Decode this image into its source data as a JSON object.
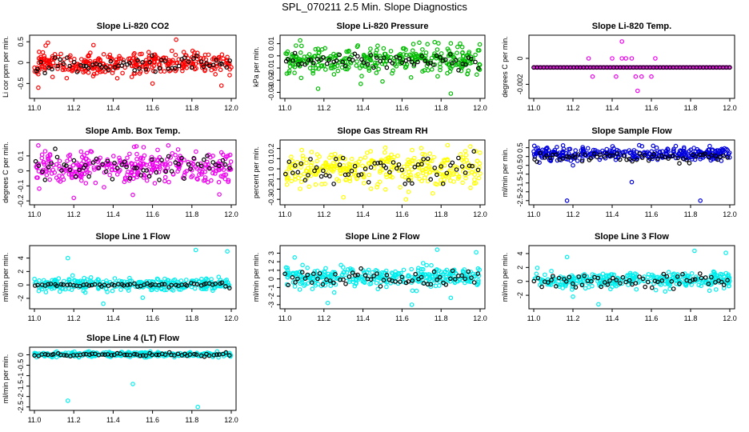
{
  "figure": {
    "title": "SPL_070211  2.5 Min. Slope Diagnostics"
  },
  "chart_data": [
    {
      "type": "scatter",
      "title": "Slope Li-820 CO2",
      "ylabel": "Li cor ppm per min.",
      "xlim": [
        11.0,
        12.0
      ],
      "ylim": [
        -0.8,
        0.6
      ],
      "xticks": [
        11.0,
        11.2,
        11.4,
        11.6,
        11.8,
        12.0
      ],
      "yticks": [
        -0.5,
        0.0,
        0.5
      ],
      "color": "#ff0000",
      "center": -0.02,
      "spread": 0.14,
      "lowCenter": -0.05,
      "lowSpread": 0.1,
      "seed": 11,
      "outliers": [
        [
          11.72,
          0.55
        ],
        [
          11.02,
          -0.6
        ],
        [
          11.95,
          -0.55
        ],
        [
          11.6,
          -0.5
        ],
        [
          11.3,
          0.42
        ]
      ]
    },
    {
      "type": "scatter",
      "title": "Slope Li-820 Pressure",
      "ylabel": "kPa per min.",
      "xlim": [
        11.0,
        12.0
      ],
      "ylim": [
        -0.033,
        0.015
      ],
      "xticks": [
        11.0,
        11.2,
        11.4,
        11.6,
        11.8,
        12.0
      ],
      "yticks": [
        -0.03,
        -0.02,
        -0.01,
        0.0,
        0.01
      ],
      "color": "#00bb00",
      "center": -0.003,
      "spread": 0.0055,
      "lowCenter": -0.003,
      "lowSpread": 0.003,
      "seed": 23,
      "outliers": [
        [
          11.85,
          -0.031
        ],
        [
          11.17,
          -0.027
        ],
        [
          11.5,
          -0.021
        ],
        [
          11.02,
          -0.014
        ]
      ]
    },
    {
      "type": "scatter",
      "title": "Slope Li-820 Temp.",
      "ylabel": "degrees C per min.",
      "xlim": [
        11.0,
        12.0
      ],
      "ylim": [
        -0.0029,
        0.0016
      ],
      "xticks": [
        11.0,
        11.2,
        11.4,
        11.6,
        11.8,
        12.0
      ],
      "yticks": [
        -0.002,
        0.0
      ],
      "color": "#ee00ee",
      "mode": "flat",
      "center": -0.0007,
      "seed": 37,
      "outliers": [
        [
          11.28,
          0.0
        ],
        [
          11.4,
          0.0
        ],
        [
          11.45,
          0.0
        ],
        [
          11.47,
          0.0
        ],
        [
          11.5,
          0.0
        ],
        [
          11.62,
          0.0
        ],
        [
          11.3,
          -0.0014
        ],
        [
          11.42,
          -0.0014
        ],
        [
          11.52,
          -0.0014
        ],
        [
          11.55,
          -0.0014
        ],
        [
          11.6,
          -0.0014
        ],
        [
          11.53,
          -0.0025
        ],
        [
          11.45,
          0.0013
        ]
      ]
    },
    {
      "type": "scatter",
      "title": "Slope Amb. Box Temp.",
      "ylabel": "degrees C per min.",
      "xlim": [
        11.0,
        12.0
      ],
      "ylim": [
        -0.21,
        0.19
      ],
      "xticks": [
        11.0,
        11.2,
        11.4,
        11.6,
        11.8,
        12.0
      ],
      "yticks": [
        -0.2,
        -0.1,
        0.0,
        0.1
      ],
      "color": "#ee00ee",
      "center": 0.02,
      "spread": 0.055,
      "lowCenter": 0.02,
      "lowSpread": 0.045,
      "seed": 41,
      "outliers": [
        [
          11.2,
          -0.18
        ],
        [
          11.68,
          0.17
        ],
        [
          11.5,
          -0.16
        ],
        [
          11.02,
          0.17
        ]
      ]
    },
    {
      "type": "scatter",
      "title": "Slope Gas Stream RH",
      "ylabel": "percent per min.",
      "xlim": [
        11.0,
        12.0
      ],
      "ylim": [
        -0.33,
        0.26
      ],
      "xticks": [
        11.0,
        11.2,
        11.4,
        11.6,
        11.8,
        12.0
      ],
      "yticks": [
        -0.3,
        -0.2,
        -0.1,
        0.0,
        0.1,
        0.2
      ],
      "color": "#ffff00",
      "center": 0.0,
      "spread": 0.085,
      "lowCenter": 0.0,
      "lowSpread": 0.08,
      "seed": 53,
      "outliers": [
        [
          11.62,
          -0.3
        ],
        [
          11.95,
          0.22
        ],
        [
          11.3,
          -0.28
        ]
      ]
    },
    {
      "type": "scatter",
      "title": "Slope Sample Flow",
      "ylabel": "ml/min per min.",
      "xlim": [
        11.0,
        12.0
      ],
      "ylim": [
        -2.6,
        0.8
      ],
      "xticks": [
        11.0,
        11.2,
        11.4,
        11.6,
        11.8,
        12.0
      ],
      "yticks": [
        -2.5,
        -2.0,
        -1.5,
        -1.0,
        -0.5,
        0.0,
        0.5
      ],
      "color": "#0000dd",
      "center": 0.15,
      "spread": 0.17,
      "lowCenter": 0.0,
      "lowSpread": 0.12,
      "seed": 67,
      "outliers": [
        [
          11.17,
          -2.5
        ],
        [
          11.5,
          -1.45
        ],
        [
          11.85,
          -2.5
        ],
        [
          11.2,
          -0.5
        ]
      ]
    },
    {
      "type": "scatter",
      "title": "Slope Line 1 Flow",
      "ylabel": "ml/min per min.",
      "xlim": [
        11.0,
        12.0
      ],
      "ylim": [
        -3.2,
        5.5
      ],
      "xticks": [
        11.0,
        11.2,
        11.4,
        11.6,
        11.8,
        12.0
      ],
      "yticks": [
        -2,
        0,
        2,
        4
      ],
      "color": "#00eeee",
      "center": 0.1,
      "spread": 0.45,
      "lowCenter": 0.0,
      "lowSpread": 0.15,
      "seed": 71,
      "outliers": [
        [
          11.82,
          5.2
        ],
        [
          11.98,
          5.0
        ],
        [
          11.17,
          4.0
        ],
        [
          11.35,
          -2.8
        ],
        [
          11.55,
          -1.9
        ]
      ]
    },
    {
      "type": "scatter",
      "title": "Slope Line 2 Flow",
      "ylabel": "ml/min per min.",
      "xlim": [
        11.0,
        12.0
      ],
      "ylim": [
        -3.2,
        3.6
      ],
      "xticks": [
        11.0,
        11.2,
        11.4,
        11.6,
        11.8,
        12.0
      ],
      "yticks": [
        -3,
        -2,
        -1,
        0,
        1,
        2,
        3
      ],
      "color": "#00eeee",
      "center": 0.25,
      "spread": 0.55,
      "lowCenter": 0.1,
      "lowSpread": 0.55,
      "seed": 83,
      "outliers": [
        [
          11.22,
          -2.8
        ],
        [
          11.65,
          -3.0
        ],
        [
          11.78,
          3.4
        ],
        [
          11.98,
          3.1
        ],
        [
          11.85,
          -2.2
        ],
        [
          11.05,
          2.5
        ]
      ]
    },
    {
      "type": "scatter",
      "title": "Slope Line 3 Flow",
      "ylabel": "ml/min per min.",
      "xlim": [
        11.0,
        12.0
      ],
      "ylim": [
        -3.6,
        4.8
      ],
      "xticks": [
        11.0,
        11.2,
        11.4,
        11.6,
        11.8,
        12.0
      ],
      "yticks": [
        -2,
        0,
        2,
        4
      ],
      "color": "#00eeee",
      "center": 0.1,
      "spread": 0.6,
      "lowCenter": 0.1,
      "lowSpread": 0.5,
      "seed": 97,
      "outliers": [
        [
          11.33,
          -3.3
        ],
        [
          11.98,
          4.1
        ],
        [
          11.17,
          3.5
        ],
        [
          11.2,
          -2.2
        ],
        [
          11.82,
          4.4
        ]
      ]
    },
    {
      "type": "scatter",
      "title": "Slope Line 4 (LT) Flow",
      "ylabel": "ml/min per min.",
      "xlim": [
        11.0,
        12.0
      ],
      "ylim": [
        -2.55,
        0.25
      ],
      "xticks": [
        11.0,
        11.2,
        11.4,
        11.6,
        11.8,
        12.0
      ],
      "yticks": [
        -2.5,
        -2.0,
        -1.5,
        -1.0,
        -0.5,
        0.0
      ],
      "color": "#00eeee",
      "center": 0.02,
      "spread": 0.055,
      "lowCenter": 0.0,
      "lowSpread": 0.04,
      "seed": 101,
      "outliers": [
        [
          11.17,
          -2.2
        ],
        [
          11.5,
          -1.4
        ],
        [
          11.83,
          -2.5
        ]
      ]
    }
  ]
}
